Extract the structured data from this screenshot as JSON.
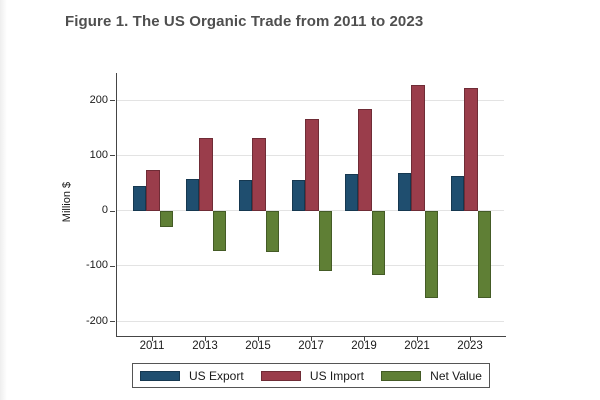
{
  "figure": {
    "title": "Figure 1. The US Organic Trade from 2011 to 2023"
  },
  "chart_data": {
    "type": "bar",
    "title": "Figure 1. The US Organic Trade from 2011 to 2023",
    "categories": [
      "2011",
      "2013",
      "2015",
      "2017",
      "2019",
      "2021",
      "2023"
    ],
    "series": [
      {
        "name": "US Export",
        "color": "#1f4e6f",
        "values": [
          45,
          57,
          56,
          56,
          67,
          68,
          63
        ]
      },
      {
        "name": "US Import",
        "color": "#9a3d4b",
        "values": [
          74,
          131,
          131,
          166,
          184,
          227,
          221
        ]
      },
      {
        "name": "Net Value",
        "color": "#5f7f35",
        "values": [
          -29,
          -74,
          -75,
          -110,
          -117,
          -159,
          -158
        ]
      }
    ],
    "xlabel": "",
    "ylabel": "Million $",
    "y_ticks": [
      200,
      100,
      0,
      -100,
      -200
    ],
    "ylim": [
      -227,
      249
    ],
    "grid": "horizontal-light",
    "legend_position": "bottom-boxed"
  },
  "colors": {
    "axis": "#454545",
    "gridline": "#e3e3e3",
    "title_text": "#4f4f4f",
    "tick_text": "#1a1a1a",
    "legend_border": "#555555",
    "background": "#ffffff"
  }
}
